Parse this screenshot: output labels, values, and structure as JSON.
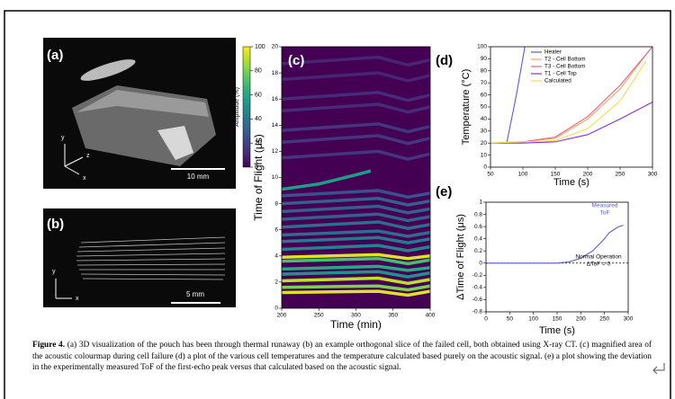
{
  "images": [
    {
      "label": "(a)",
      "scale": "10 mm",
      "axes": [
        "y",
        "z",
        "x"
      ]
    },
    {
      "label": "(b)",
      "scale": "5 mm",
      "axes": [
        "y",
        "x"
      ]
    }
  ],
  "chart_data": [
    {
      "type": "heatmap",
      "label": "(c)",
      "xlabel": "Time (min)",
      "ylabel": "Time of Flight (μs)",
      "xlim": [
        200,
        400
      ],
      "xticks": [
        200,
        250,
        300,
        350,
        400
      ],
      "ylim": [
        0,
        20
      ],
      "yticks": [
        0,
        2,
        4,
        6,
        8,
        10,
        12,
        14,
        16,
        18,
        20
      ],
      "colorbar": {
        "label": "Amplitude (%)",
        "lim": [
          0,
          100
        ],
        "ticks": [
          0,
          20,
          40,
          60,
          80,
          100
        ]
      },
      "echoes": [
        {
          "x": [
            200,
            330,
            370,
            400
          ],
          "y": [
            1.2,
            1.3,
            1.0,
            1.3
          ],
          "amplitude": 95
        },
        {
          "x": [
            200,
            330,
            370,
            400
          ],
          "y": [
            1.6,
            1.7,
            1.4,
            1.7
          ],
          "amplitude": 80
        },
        {
          "x": [
            200,
            330,
            370,
            400
          ],
          "y": [
            2.1,
            2.3,
            1.9,
            2.2
          ],
          "amplitude": 90
        },
        {
          "x": [
            200,
            330,
            370,
            400
          ],
          "y": [
            2.6,
            2.8,
            2.4,
            2.7
          ],
          "amplitude": 50
        },
        {
          "x": [
            200,
            330,
            370,
            400
          ],
          "y": [
            3.0,
            3.2,
            2.9,
            3.1
          ],
          "amplitude": 60
        },
        {
          "x": [
            200,
            330,
            370,
            400
          ],
          "y": [
            3.6,
            3.8,
            3.4,
            3.7
          ],
          "amplitude": 70
        },
        {
          "x": [
            200,
            330,
            370,
            400
          ],
          "y": [
            3.9,
            4.1,
            3.8,
            4.0
          ],
          "amplitude": 95
        },
        {
          "x": [
            200,
            330,
            370,
            400
          ],
          "y": [
            4.5,
            4.8,
            4.4,
            4.7
          ],
          "amplitude": 45
        },
        {
          "x": [
            200,
            330,
            370,
            400
          ],
          "y": [
            5.1,
            5.4,
            5.0,
            5.3
          ],
          "amplitude": 40
        },
        {
          "x": [
            200,
            330,
            370,
            400
          ],
          "y": [
            5.6,
            5.9,
            5.5,
            5.8
          ],
          "amplitude": 35
        },
        {
          "x": [
            200,
            330,
            370,
            400
          ],
          "y": [
            6.2,
            6.6,
            6.1,
            6.4
          ],
          "amplitude": 35
        },
        {
          "x": [
            200,
            330,
            370,
            400
          ],
          "y": [
            6.8,
            7.2,
            6.7,
            7.0
          ],
          "amplitude": 30
        },
        {
          "x": [
            200,
            330,
            370,
            400
          ],
          "y": [
            7.4,
            7.8,
            7.3,
            7.6
          ],
          "amplitude": 30
        },
        {
          "x": [
            200,
            330,
            370,
            400
          ],
          "y": [
            8.0,
            8.4,
            7.9,
            8.2
          ],
          "amplitude": 30
        },
        {
          "x": [
            200,
            330,
            370,
            400
          ],
          "y": [
            8.6,
            9.0,
            8.5,
            8.8
          ],
          "amplitude": 25
        },
        {
          "x": [
            200,
            250,
            300,
            320
          ],
          "y": [
            9.1,
            9.5,
            10.2,
            10.5
          ],
          "amplitude": 55
        },
        {
          "x": [
            200,
            330,
            370,
            400
          ],
          "y": [
            11.5,
            12.0,
            11.4,
            11.8
          ],
          "amplitude": 15
        },
        {
          "x": [
            200,
            330,
            370,
            400
          ],
          "y": [
            12.7,
            13.2,
            12.6,
            13.0
          ],
          "amplitude": 15
        },
        {
          "x": [
            200,
            330,
            370,
            400
          ],
          "y": [
            13.6,
            14.1,
            13.5,
            13.9
          ],
          "amplitude": 15
        },
        {
          "x": [
            200,
            330,
            370,
            400
          ],
          "y": [
            15.1,
            15.6,
            15.0,
            15.4
          ],
          "amplitude": 12
        },
        {
          "x": [
            200,
            330,
            370,
            400
          ],
          "y": [
            16.0,
            16.5,
            15.9,
            16.3
          ],
          "amplitude": 12
        },
        {
          "x": [
            200,
            330,
            370,
            400
          ],
          "y": [
            17.5,
            18.0,
            17.4,
            17.8
          ],
          "amplitude": 10
        },
        {
          "x": [
            200,
            330,
            370,
            400
          ],
          "y": [
            18.7,
            19.2,
            18.6,
            19.0
          ],
          "amplitude": 10
        }
      ]
    },
    {
      "type": "line",
      "label": "(d)",
      "xlabel": "Time (s)",
      "ylabel": "Temperature (°C)",
      "xlim": [
        50,
        300
      ],
      "xticks": [
        50,
        100,
        150,
        200,
        250,
        300
      ],
      "ylim": [
        0,
        100
      ],
      "yticks": [
        0,
        10,
        20,
        30,
        40,
        50,
        60,
        70,
        80,
        90,
        100
      ],
      "legend": "upper left",
      "series": [
        {
          "name": "Heater",
          "color": "#5b5bd6",
          "x": [
            50,
            75,
            90,
            103
          ],
          "values": [
            20,
            20,
            60,
            100
          ]
        },
        {
          "name": "T2 - Cell Bottom",
          "color": "#f4a460",
          "x": [
            50,
            100,
            150,
            200,
            250,
            295
          ],
          "values": [
            20,
            21,
            24,
            40,
            65,
            97
          ]
        },
        {
          "name": "T3 - Cell Bottom",
          "color": "#e8608a",
          "x": [
            50,
            100,
            150,
            200,
            250,
            300
          ],
          "values": [
            20,
            21,
            25,
            42,
            68,
            100
          ]
        },
        {
          "name": "T1 - Cell Top",
          "color": "#8a2be2",
          "x": [
            50,
            100,
            150,
            200,
            250,
            300
          ],
          "values": [
            20,
            20,
            21,
            27,
            40,
            54
          ]
        },
        {
          "name": "Calculated",
          "color": "#f0e050",
          "x": [
            50,
            100,
            150,
            200,
            250,
            290
          ],
          "values": [
            20,
            21,
            22,
            32,
            55,
            88
          ]
        }
      ]
    },
    {
      "type": "line",
      "label": "(e)",
      "xlabel": "Time (s)",
      "ylabel": "ΔTime of Flight (μs)",
      "xlim": [
        0,
        300
      ],
      "xticks": [
        0,
        50,
        100,
        150,
        200,
        250,
        300
      ],
      "ylim": [
        -0.8,
        1
      ],
      "yticks": [
        -0.8,
        -0.6,
        -0.4,
        -0.2,
        0,
        0.2,
        0.4,
        0.6,
        0.8,
        1
      ],
      "hline": 0,
      "annotations": [
        "Measured",
        "ToF",
        "Normal Operation",
        "ΔToF = 0"
      ],
      "series": [
        {
          "name": "Measured ToF",
          "color": "#5b5bd6",
          "x": [
            0,
            50,
            100,
            150,
            175,
            200,
            225,
            250,
            260,
            270,
            280,
            290
          ],
          "values": [
            0,
            0,
            0,
            0,
            0.02,
            0.08,
            0.2,
            0.4,
            0.5,
            0.55,
            0.6,
            0.62
          ]
        }
      ]
    }
  ],
  "caption": {
    "label": "Figure 4.",
    "text": "(a) 3D visualization of the pouch has been through thermal runaway (b) an example orthogonal slice of the failed cell, both obtained using X-ray CT. (c) magnified area of the acoustic colourmap during cell failure (d) a plot of the various cell temperatures and the temperature calculated based purely on the acoustic signal. (e) a plot showing the deviation in the experimentally measured ToF of the first-echo peak versus that calculated based on the acoustic signal."
  }
}
